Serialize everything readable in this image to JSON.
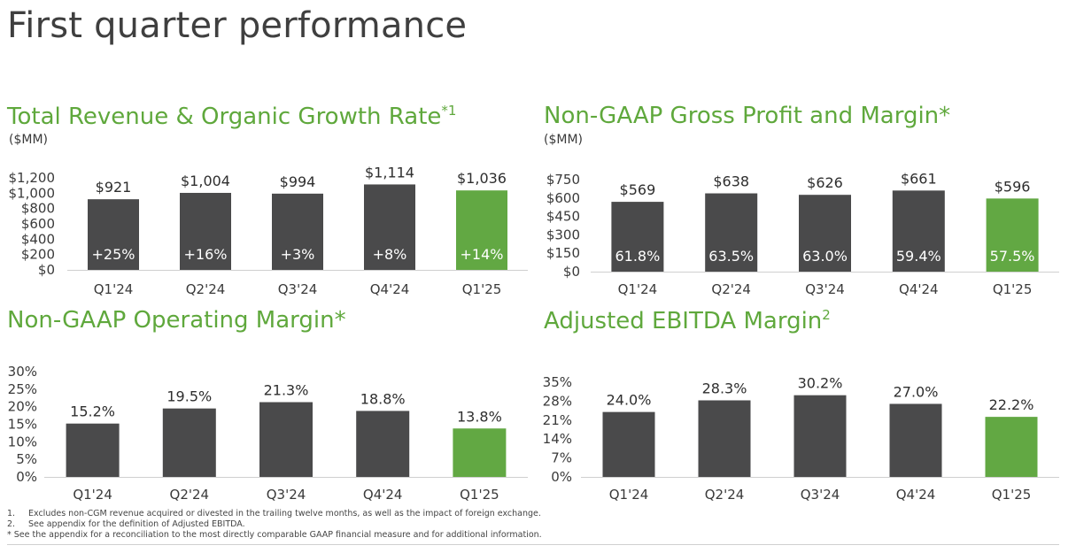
{
  "page": {
    "title": "First quarter performance"
  },
  "colors": {
    "bar": "#4a4a4b",
    "highlight": "#62a843",
    "title": "#5fa83c",
    "axis": "#cfcfcf"
  },
  "charts": {
    "revenue": {
      "title": "Total Revenue & Organic Growth Rate",
      "title_sup": "*1",
      "unit": "($MM)",
      "chart_data": {
        "type": "bar",
        "categories": [
          "Q1'24",
          "Q2'24",
          "Q3'24",
          "Q4'24",
          "Q1'25"
        ],
        "values": [
          921,
          1004,
          994,
          1114,
          1036
        ],
        "value_labels": [
          "$921",
          "$1,004",
          "$994",
          "$1,114",
          "$1,036"
        ],
        "inner_labels": [
          "+25%",
          "+16%",
          "+3%",
          "+8%",
          "+14%"
        ],
        "yticks": [
          0,
          200,
          400,
          600,
          800,
          1000,
          1200
        ],
        "ytick_labels": [
          "$0",
          "$200",
          "$400",
          "$600",
          "$800",
          "$1,000",
          "$1,200"
        ],
        "ylim": [
          0,
          1200
        ],
        "highlight_index": 4
      }
    },
    "gross": {
      "title": "Non-GAAP Gross Profit and Margin*",
      "unit": "($MM)",
      "chart_data": {
        "type": "bar",
        "categories": [
          "Q1'24",
          "Q2'24",
          "Q3'24",
          "Q4'24",
          "Q1'25"
        ],
        "values": [
          569,
          638,
          626,
          661,
          596
        ],
        "value_labels": [
          "$569",
          "$638",
          "$626",
          "$661",
          "$596"
        ],
        "inner_labels": [
          "61.8%",
          "63.5%",
          "63.0%",
          "59.4%",
          "57.5%"
        ],
        "yticks": [
          0,
          150,
          300,
          450,
          600,
          750
        ],
        "ytick_labels": [
          "$0",
          "$150",
          "$300",
          "$450",
          "$600",
          "$750"
        ],
        "ylim": [
          0,
          750
        ],
        "highlight_index": 4
      }
    },
    "operating": {
      "title": "Non-GAAP Operating Margin*",
      "chart_data": {
        "type": "bar",
        "categories": [
          "Q1'24",
          "Q2'24",
          "Q3'24",
          "Q4'24",
          "Q1'25"
        ],
        "values": [
          15.2,
          19.5,
          21.3,
          18.8,
          13.8
        ],
        "value_labels": [
          "15.2%",
          "19.5%",
          "21.3%",
          "18.8%",
          "13.8%"
        ],
        "yticks": [
          0,
          5,
          10,
          15,
          20,
          25,
          30
        ],
        "ytick_labels": [
          "0%",
          "5%",
          "10%",
          "15%",
          "20%",
          "25%",
          "30%"
        ],
        "ylim": [
          0,
          30
        ],
        "highlight_index": 4
      }
    },
    "ebitda": {
      "title": "Adjusted EBITDA Margin",
      "title_sup": "2",
      "chart_data": {
        "type": "bar",
        "categories": [
          "Q1'24",
          "Q2'24",
          "Q3'24",
          "Q4'24",
          "Q1'25"
        ],
        "values": [
          24.0,
          28.3,
          30.2,
          27.0,
          22.2
        ],
        "value_labels": [
          "24.0%",
          "28.3%",
          "30.2%",
          "27.0%",
          "22.2%"
        ],
        "yticks": [
          0,
          7,
          14,
          21,
          28,
          35
        ],
        "ytick_labels": [
          "0%",
          "7%",
          "14%",
          "21%",
          "28%",
          "35%"
        ],
        "ylim": [
          0,
          35
        ],
        "highlight_index": 4
      }
    }
  },
  "footnotes": [
    {
      "num": "1.",
      "text": "Excludes non-CGM revenue acquired or divested in the trailing twelve months, as well as the impact of foreign exchange."
    },
    {
      "num": "2.",
      "text": "See appendix for the definition of Adjusted EBITDA."
    },
    {
      "num": "",
      "text": "* See the appendix for a reconciliation to the most directly comparable GAAP financial measure and for additional information."
    }
  ]
}
